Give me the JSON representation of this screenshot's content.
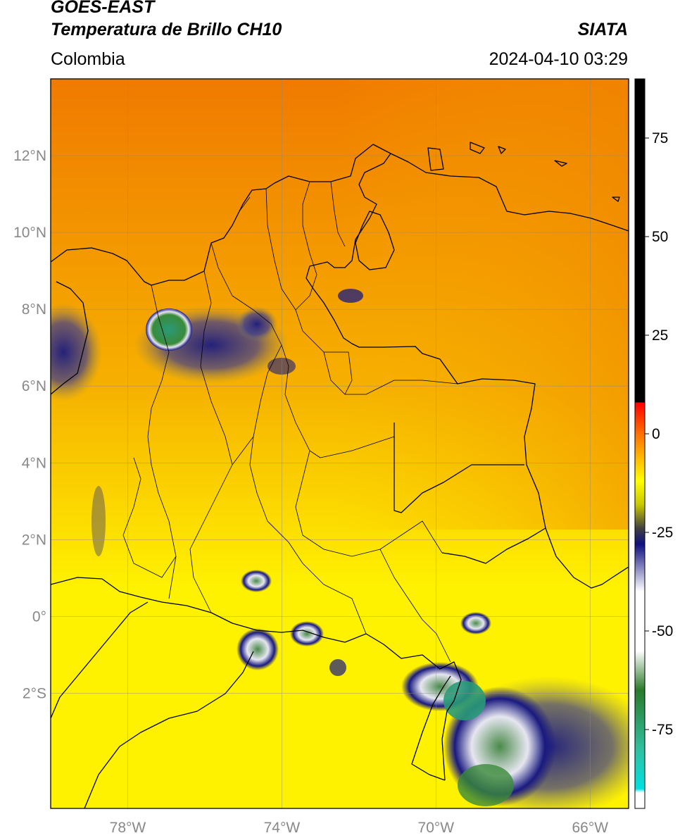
{
  "header": {
    "satellite": "GOES-EAST",
    "product": "Temperatura de Brillo CH10",
    "agency": "SIATA",
    "region": "Colombia",
    "datetime": "2024-04-10 03:29"
  },
  "map": {
    "lon_range": [
      -80,
      -65
    ],
    "lat_range": [
      -5.0,
      14.0
    ],
    "lon_ticks": [
      {
        "value": -78,
        "label": "78°W"
      },
      {
        "value": -74,
        "label": "74°W"
      },
      {
        "value": -70,
        "label": "70°W"
      },
      {
        "value": -66,
        "label": "66°W"
      }
    ],
    "lat_ticks": [
      {
        "value": 12,
        "label": "12°N"
      },
      {
        "value": 10,
        "label": "10°N"
      },
      {
        "value": 8,
        "label": "8°N"
      },
      {
        "value": 6,
        "label": "6°N"
      },
      {
        "value": 4,
        "label": "4°N"
      },
      {
        "value": 2,
        "label": "2°N"
      },
      {
        "value": 0,
        "label": "0°"
      },
      {
        "value": -2,
        "label": "2°S"
      }
    ],
    "grid": true,
    "background_colors": {
      "north": "#f07a00",
      "middle": "#f6b000",
      "south": "#fff200"
    },
    "cloud_colors": {
      "navy": "#1a1a80",
      "white": "#e6e6f0",
      "green": "#3a8a3a",
      "teal": "#2a9a78"
    }
  },
  "colorbar": {
    "vmin": -95,
    "vmax": 90,
    "ticks": [
      75,
      50,
      25,
      0,
      -25,
      -50,
      -75
    ],
    "tick_labels": [
      "75",
      "50",
      "25",
      "0",
      "-25",
      "-50",
      "-75"
    ],
    "stops": [
      {
        "value": 90,
        "color": "#000000"
      },
      {
        "value": 8,
        "color": "#000000"
      },
      {
        "value": 7.9,
        "color": "#ff0000"
      },
      {
        "value": 0,
        "color": "#ff7000"
      },
      {
        "value": -12,
        "color": "#ffff00"
      },
      {
        "value": -18,
        "color": "#c8c800"
      },
      {
        "value": -24,
        "color": "#404040"
      },
      {
        "value": -28,
        "color": "#101080"
      },
      {
        "value": -40,
        "color": "#ffffff"
      },
      {
        "value": -55,
        "color": "#ffffff"
      },
      {
        "value": -65,
        "color": "#2a7a2a"
      },
      {
        "value": -80,
        "color": "#30c0a0"
      },
      {
        "value": -90,
        "color": "#00e0e0"
      },
      {
        "value": -91,
        "color": "#ffffff"
      },
      {
        "value": -95,
        "color": "#ffffff"
      }
    ]
  }
}
